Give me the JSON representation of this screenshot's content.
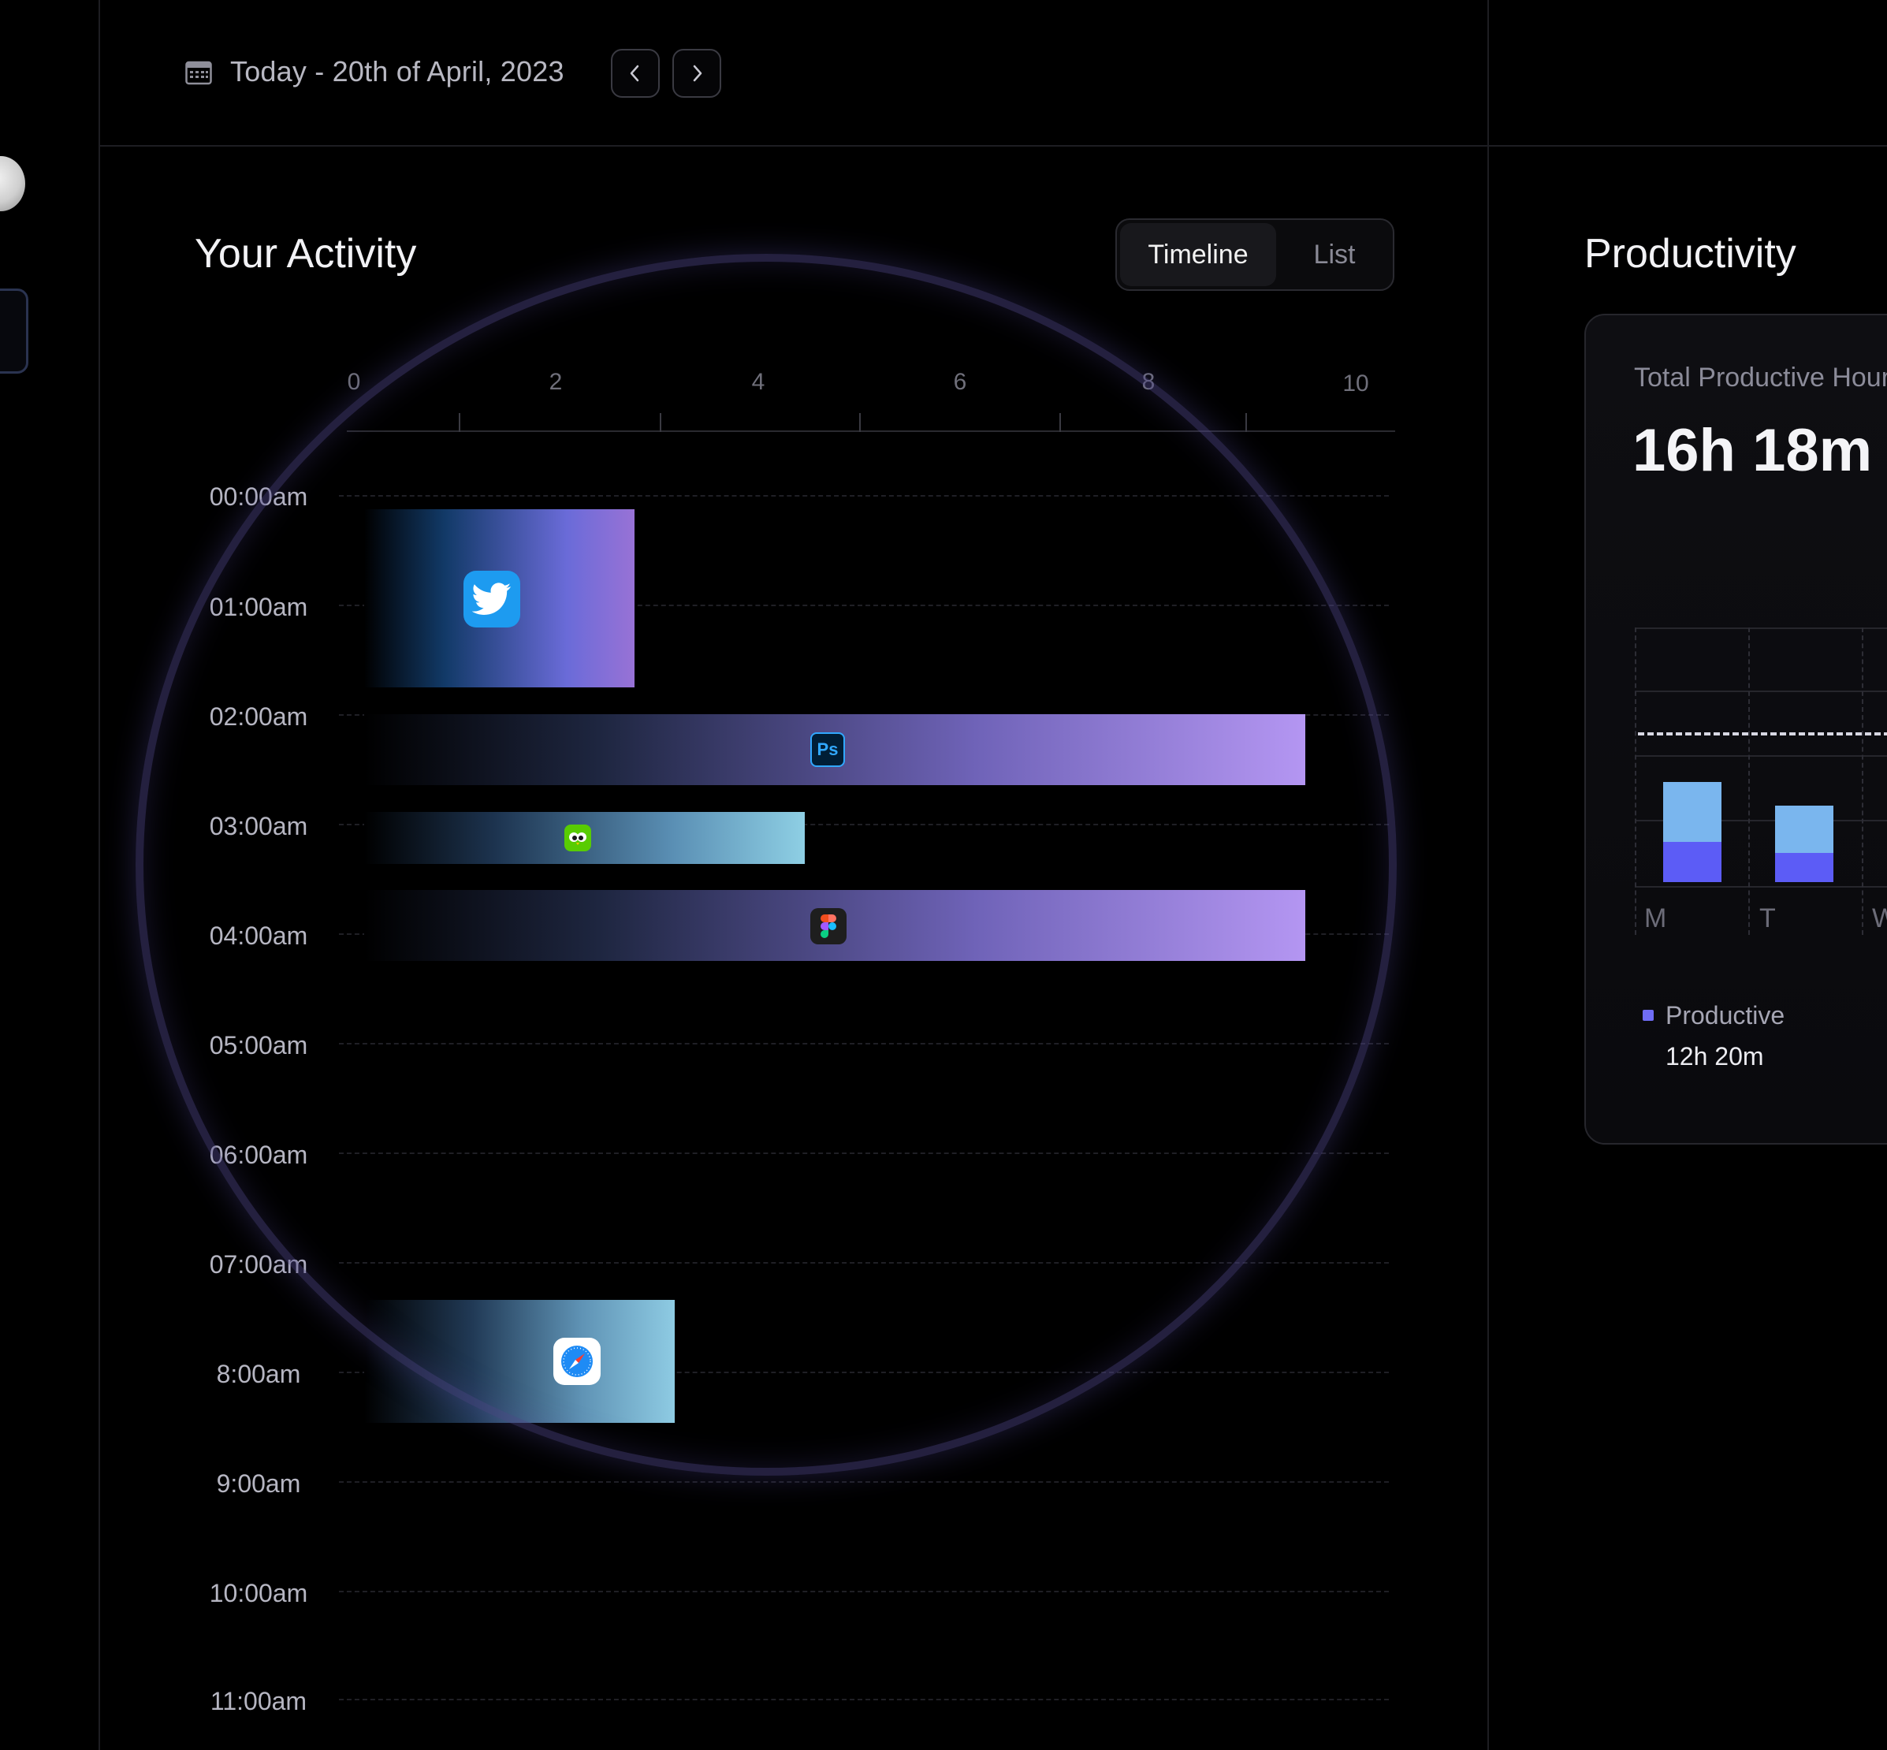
{
  "header": {
    "date_text": "Today - 20th of April, 2023",
    "prev_icon": "chevron-left-icon",
    "next_icon": "chevron-right-icon",
    "calendar_icon": "calendar-icon"
  },
  "activity": {
    "title": "Your Activity",
    "view_toggle": {
      "active": "Timeline",
      "inactive": "List"
    },
    "x_ticks": [
      "0",
      "2",
      "4",
      "6",
      "8",
      "10"
    ],
    "y_labels": [
      "00:00am",
      "01:00am",
      "02:00am",
      "03:00am",
      "04:00am",
      "05:00am",
      "06:00am",
      "07:00am",
      "8:00am",
      "9:00am",
      "10:00am",
      "11:00am"
    ],
    "chart_data": {
      "type": "bar",
      "orientation": "horizontal",
      "x_range": [
        0,
        10
      ],
      "entries": [
        {
          "app": "twitter-icon",
          "time_range": [
            "00:08am",
            "01:45am"
          ],
          "value": 2.8
        },
        {
          "app": "photoshop-icon",
          "app_text": "Ps",
          "time_range": [
            "02:00am",
            "02:40am"
          ],
          "value": 9.5
        },
        {
          "app": "duolingo-icon",
          "time_range": [
            "02:55am",
            "03:25am"
          ],
          "value": 4.5
        },
        {
          "app": "figma-icon",
          "time_range": [
            "03:40am",
            "04:20am"
          ],
          "value": 9.5
        },
        {
          "app": "safari-icon",
          "time_range": [
            "07:20am",
            "08:30am"
          ],
          "value": 3.2
        }
      ]
    }
  },
  "productivity": {
    "title": "Productivity",
    "total_label": "Total Productive Hour",
    "total_value": "16h 18m",
    "days": [
      "M",
      "T",
      "W"
    ],
    "chart_data": {
      "type": "bar",
      "stacked": true,
      "categories": [
        "M",
        "T"
      ],
      "series": [
        {
          "name": "Productive",
          "color": "#5c5cf6",
          "values": [
            0.4,
            0.38
          ]
        },
        {
          "color": "#7ab6ee",
          "values": [
            0.6,
            0.62
          ]
        }
      ]
    },
    "legend": {
      "label": "Productive",
      "value": "12h 20m",
      "color": "#6f6df6"
    }
  }
}
